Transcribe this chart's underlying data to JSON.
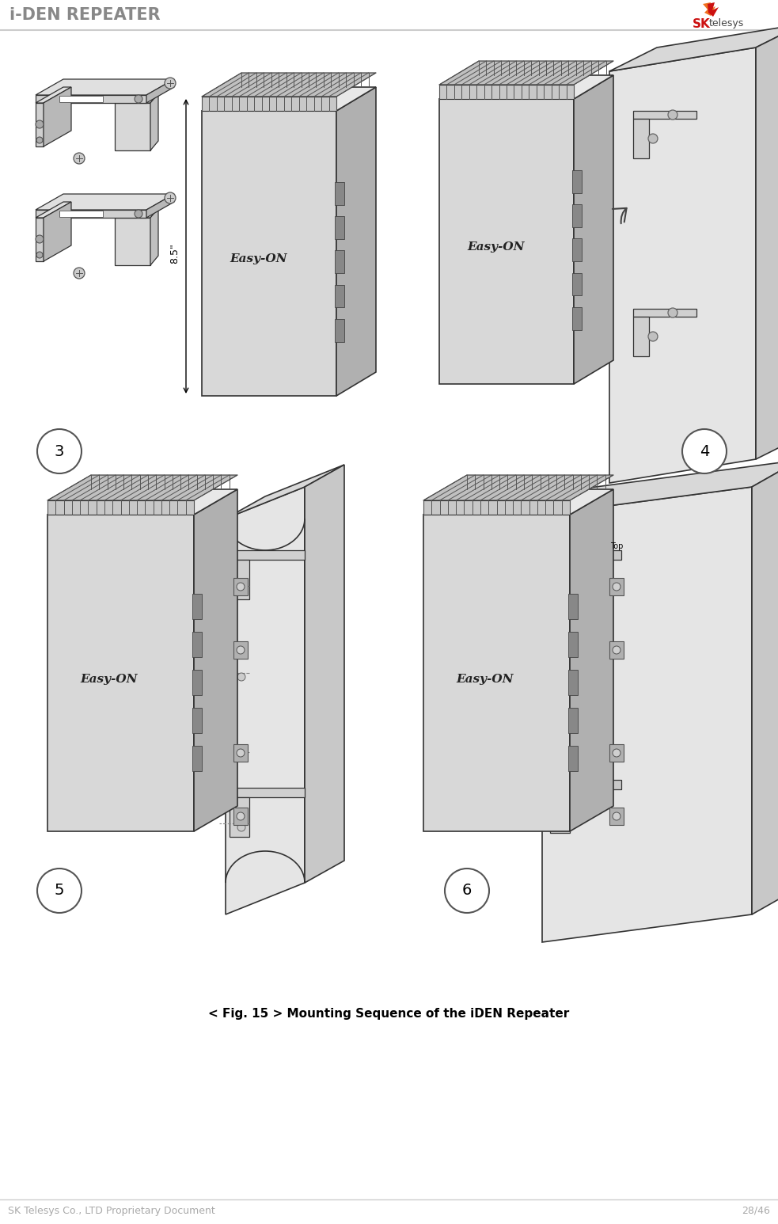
{
  "title_text": "i-DEN REPEATER",
  "title_color": "#888888",
  "title_fontsize": 15,
  "footer_left": "SK Telesys Co., LTD Proprietary Document",
  "footer_right": "28/46",
  "footer_fontsize": 9,
  "footer_color": "#aaaaaa",
  "caption_text": "< Fig. 15 > Mounting Sequence of the iDEN Repeater",
  "caption_fontsize": 11,
  "background_color": "#ffffff",
  "line_color": "#333333",
  "light_gray": "#e8e8e8",
  "mid_gray": "#cccccc",
  "dark_gray": "#888888",
  "wall_color": "#e0e0e0",
  "device_front": "#d8d8d8",
  "device_side": "#b0b0b0",
  "device_top": "#e8e8e8",
  "heatsink_color": "#aaaaaa"
}
